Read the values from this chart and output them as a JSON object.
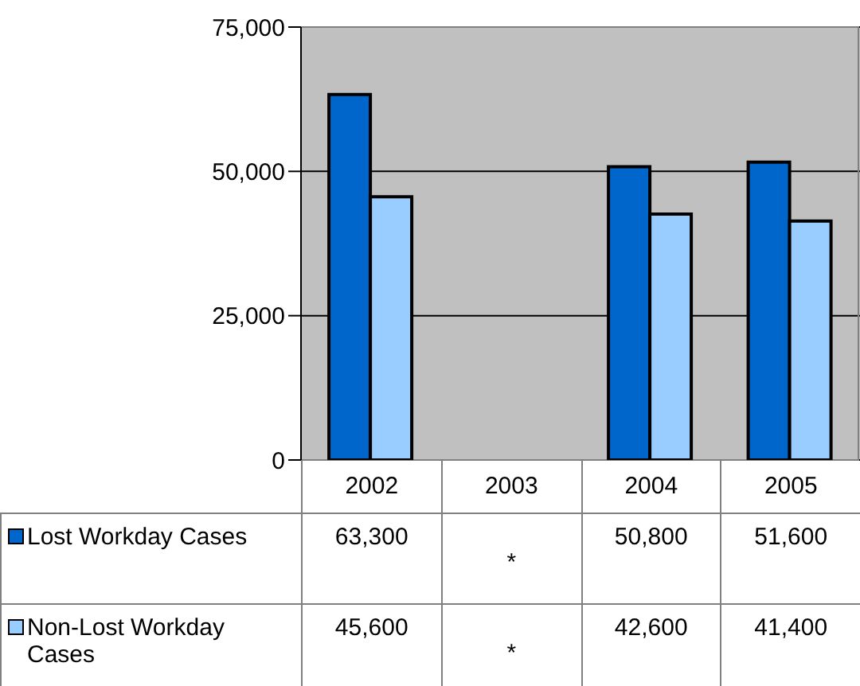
{
  "chart_data": {
    "type": "bar",
    "categories": [
      "2002",
      "2003",
      "2004",
      "2005"
    ],
    "series": [
      {
        "name": "Lost Workday Cases",
        "color": "#0066cc",
        "values": [
          63300,
          null,
          50800,
          51600
        ],
        "value_labels": [
          "63,300",
          "*",
          "50,800",
          "51,600"
        ]
      },
      {
        "name": "Non-Lost Workday Cases",
        "color": "#99ccff",
        "values": [
          45600,
          null,
          42600,
          41400
        ],
        "value_labels": [
          "45,600",
          "*",
          "42,600",
          "41,400"
        ]
      }
    ],
    "ylim": [
      0,
      75000
    ],
    "yticks": [
      0,
      {
        "value": 25000,
        "label": "25,000"
      },
      {
        "value": 50000,
        "label": "50,000"
      },
      {
        "value": 75000,
        "label": "75,000"
      }
    ],
    "grid": "y",
    "legend": "bottom left"
  }
}
